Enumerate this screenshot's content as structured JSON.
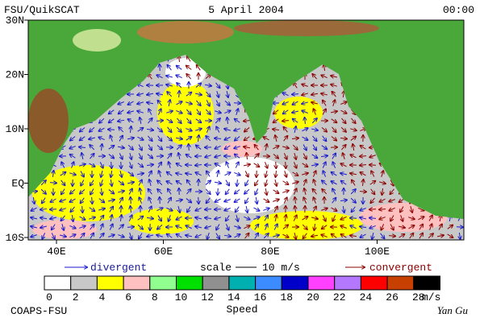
{
  "header": {
    "left": "FSU/QuikSCAT",
    "center": "5 April 2004",
    "right": "00:00"
  },
  "lat_labels": [
    "30N",
    "20N",
    "10N",
    "EQ",
    "10S"
  ],
  "lon_labels": [
    "40E",
    "60E",
    "80E",
    "100E"
  ],
  "legend": {
    "divergent": "divergent",
    "scale": "scale",
    "scale_value": "10 m/s",
    "convergent": "convergent"
  },
  "colorbar": {
    "colors": [
      "#ffffff",
      "#c8c8c8",
      "#ffff00",
      "#ffc0c0",
      "#90ff90",
      "#00e000",
      "#909090",
      "#00b0b0",
      "#3c8cff",
      "#0000c8",
      "#ff40ff",
      "#b478ff",
      "#ff0000",
      "#c84000",
      "#000000"
    ],
    "labels": [
      0,
      2,
      4,
      6,
      8,
      10,
      12,
      14,
      16,
      18,
      20,
      22,
      24,
      26,
      28
    ],
    "unit": "m/s",
    "title": "Speed"
  },
  "footer": {
    "left": "COAPS-FSU",
    "signature": "Yan Gu"
  }
}
